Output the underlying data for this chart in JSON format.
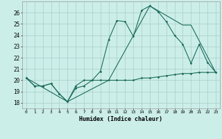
{
  "title": "",
  "xlabel": "Humidex (Indice chaleur)",
  "bg_color": "#cceee8",
  "grid_color": "#aacccc",
  "line_color": "#1a6b5a",
  "xlim": [
    -0.5,
    23.5
  ],
  "ylim": [
    17.5,
    27.0
  ],
  "yticks": [
    18,
    19,
    20,
    21,
    22,
    23,
    24,
    25,
    26
  ],
  "xticks": [
    0,
    1,
    2,
    3,
    4,
    5,
    6,
    7,
    8,
    9,
    10,
    11,
    12,
    13,
    14,
    15,
    16,
    17,
    18,
    19,
    20,
    21,
    22,
    23
  ],
  "line1_x": [
    0,
    1,
    2,
    3,
    4,
    5,
    6,
    7,
    8,
    9,
    10,
    11,
    12,
    13,
    14,
    15,
    16,
    17,
    18,
    19,
    20,
    21,
    22,
    23
  ],
  "line1_y": [
    20.2,
    19.5,
    19.5,
    19.7,
    18.8,
    18.1,
    19.3,
    19.5,
    20.0,
    20.0,
    20.0,
    20.0,
    20.0,
    20.0,
    20.2,
    20.2,
    20.3,
    20.4,
    20.5,
    20.6,
    20.6,
    20.7,
    20.7,
    20.7
  ],
  "line2_x": [
    0,
    1,
    2,
    3,
    4,
    5,
    6,
    7,
    8,
    9,
    10,
    11,
    12,
    13,
    14,
    15,
    16,
    17,
    18,
    19,
    20,
    21,
    22,
    23
  ],
  "line2_y": [
    20.2,
    19.5,
    19.5,
    19.7,
    18.8,
    18.1,
    19.5,
    20.0,
    20.0,
    20.8,
    23.6,
    25.3,
    25.2,
    23.9,
    26.2,
    26.6,
    26.1,
    25.2,
    24.0,
    23.2,
    21.5,
    23.2,
    21.6,
    20.7
  ],
  "line3_x": [
    0,
    5,
    10,
    15,
    19,
    20,
    23
  ],
  "line3_y": [
    20.2,
    18.1,
    20.0,
    26.6,
    24.9,
    24.9,
    20.7
  ]
}
